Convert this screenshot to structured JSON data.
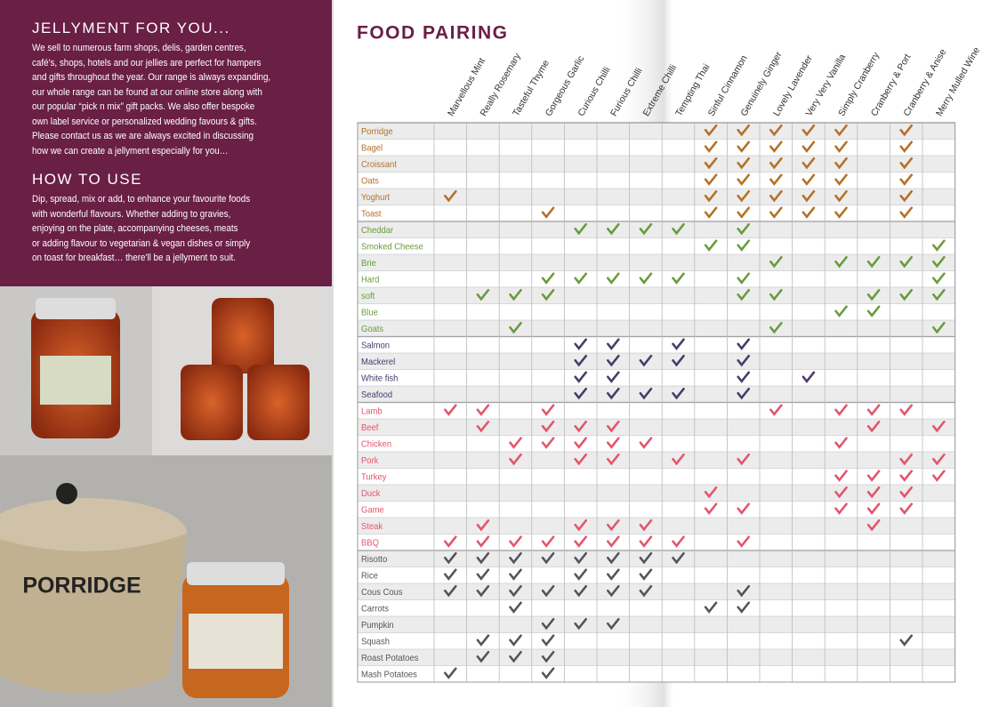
{
  "left": {
    "sections": [
      {
        "heading": "JELLYMENT FOR YOU...",
        "lines": [
          "We sell to numerous farm shops, delis, garden centres,",
          "café's, shops, hotels and our jellies are perfect for hampers",
          "and gifts throughout the year. Our range is always expanding,",
          "our whole range can be found at our online store along with",
          "our popular “pick n mix” gift packs. We also offer bespoke",
          "own label service or personalized wedding favours & gifts.",
          "Please contact us as we are always excited in discussing",
          "how we can create a jellyment especially for you…"
        ]
      },
      {
        "heading": "HOW TO USE",
        "lines": [
          "Dip, spread, mix or add, to enhance your favourite foods",
          "with wonderful flavours. Whether adding to gravies,",
          "enjoying on the plate, accompanying cheeses, meats",
          "or adding flavour to vegetarian & vegan dishes or simply",
          "on toast for breakfast… there'll be a jellyment to suit."
        ]
      }
    ],
    "bowl_text": "PORRIDGE"
  },
  "table": {
    "title": "FOOD PAIRING",
    "columns": [
      "Marvellous Mint",
      "Really Rosemary",
      "Tasteful Thyme",
      "Gorgeous Garlic",
      "Curious Chilli",
      "Furious Chilli",
      "Extreme Chilli",
      "Tempting Thai",
      "Sinful Cinnamon",
      "Genuinely Ginger",
      "Lovely Lavender",
      "Very Very Vanilla",
      "Simply Cranberry",
      "Cranberry & Port",
      "Cranberry & Anise",
      "Merry Mulled Wine"
    ],
    "groups": [
      {
        "color": "#b5702a",
        "rows": [
          {
            "label": "Porridge",
            "checks": [
              false,
              false,
              false,
              false,
              false,
              false,
              false,
              false,
              true,
              true,
              true,
              true,
              true,
              false,
              true,
              false
            ]
          },
          {
            "label": "Bagel",
            "checks": [
              false,
              false,
              false,
              false,
              false,
              false,
              false,
              false,
              true,
              true,
              true,
              true,
              true,
              false,
              true,
              false
            ]
          },
          {
            "label": "Croissant",
            "checks": [
              false,
              false,
              false,
              false,
              false,
              false,
              false,
              false,
              true,
              true,
              true,
              true,
              true,
              false,
              true,
              false
            ]
          },
          {
            "label": "Oats",
            "checks": [
              false,
              false,
              false,
              false,
              false,
              false,
              false,
              false,
              true,
              true,
              true,
              true,
              true,
              false,
              true,
              false
            ]
          },
          {
            "label": "Yoghurt",
            "checks": [
              true,
              false,
              false,
              false,
              false,
              false,
              false,
              false,
              true,
              true,
              true,
              true,
              true,
              false,
              true,
              false
            ]
          },
          {
            "label": "Toast",
            "checks": [
              false,
              false,
              false,
              true,
              false,
              false,
              false,
              false,
              true,
              true,
              true,
              true,
              true,
              false,
              true,
              false
            ]
          }
        ]
      },
      {
        "color": "#6b9a3c",
        "rows": [
          {
            "label": "Cheddar",
            "checks": [
              false,
              false,
              false,
              false,
              true,
              true,
              true,
              true,
              false,
              true,
              false,
              false,
              false,
              false,
              false,
              false
            ]
          },
          {
            "label": "Smoked Cheese",
            "checks": [
              false,
              false,
              false,
              false,
              false,
              false,
              false,
              false,
              true,
              true,
              false,
              false,
              false,
              false,
              false,
              true
            ]
          },
          {
            "label": "Brie",
            "checks": [
              false,
              false,
              false,
              false,
              false,
              false,
              false,
              false,
              false,
              false,
              true,
              false,
              true,
              true,
              true,
              true
            ]
          },
          {
            "label": "Hard",
            "checks": [
              false,
              false,
              false,
              true,
              true,
              true,
              true,
              true,
              false,
              true,
              false,
              false,
              false,
              false,
              false,
              true
            ]
          },
          {
            "label": "soft",
            "checks": [
              false,
              true,
              true,
              true,
              false,
              false,
              false,
              false,
              false,
              true,
              true,
              false,
              false,
              true,
              true,
              true
            ]
          },
          {
            "label": "Blue",
            "checks": [
              false,
              false,
              false,
              false,
              false,
              false,
              false,
              false,
              false,
              false,
              false,
              false,
              true,
              true,
              false,
              false
            ]
          },
          {
            "label": "Goats",
            "checks": [
              false,
              false,
              true,
              false,
              false,
              false,
              false,
              false,
              false,
              false,
              true,
              false,
              false,
              false,
              false,
              true
            ]
          }
        ]
      },
      {
        "color": "#4b3a6b",
        "rows": [
          {
            "label": "Salmon",
            "checks": [
              false,
              false,
              false,
              false,
              true,
              true,
              false,
              true,
              false,
              true,
              false,
              false,
              false,
              false,
              false,
              false
            ]
          },
          {
            "label": "Mackerel",
            "checks": [
              false,
              false,
              false,
              false,
              true,
              true,
              true,
              true,
              false,
              true,
              false,
              false,
              false,
              false,
              false,
              false
            ]
          },
          {
            "label": "White fish",
            "checks": [
              false,
              false,
              false,
              false,
              true,
              true,
              false,
              false,
              false,
              true,
              false,
              true,
              false,
              false,
              false,
              false
            ]
          },
          {
            "label": "Seafood",
            "checks": [
              false,
              false,
              false,
              false,
              true,
              true,
              true,
              true,
              false,
              true,
              false,
              false,
              false,
              false,
              false,
              false
            ]
          }
        ]
      },
      {
        "color": "#e2566a",
        "rows": [
          {
            "label": "Lamb",
            "checks": [
              true,
              true,
              false,
              true,
              false,
              false,
              false,
              false,
              false,
              false,
              true,
              false,
              true,
              true,
              true,
              false
            ]
          },
          {
            "label": "Beef",
            "checks": [
              false,
              true,
              false,
              true,
              true,
              true,
              false,
              false,
              false,
              false,
              false,
              false,
              false,
              true,
              false,
              true
            ]
          },
          {
            "label": "Chicken",
            "checks": [
              false,
              false,
              true,
              true,
              true,
              true,
              true,
              false,
              false,
              false,
              false,
              false,
              true,
              false,
              false,
              false
            ]
          },
          {
            "label": "Pork",
            "checks": [
              false,
              false,
              true,
              false,
              true,
              true,
              false,
              true,
              false,
              true,
              false,
              false,
              false,
              false,
              true,
              true
            ]
          },
          {
            "label": "Turkey",
            "checks": [
              false,
              false,
              false,
              false,
              false,
              false,
              false,
              false,
              false,
              false,
              false,
              false,
              true,
              true,
              true,
              true
            ]
          },
          {
            "label": "Duck",
            "checks": [
              false,
              false,
              false,
              false,
              false,
              false,
              false,
              false,
              true,
              false,
              false,
              false,
              true,
              true,
              true,
              false
            ]
          },
          {
            "label": "Game",
            "checks": [
              false,
              false,
              false,
              false,
              false,
              false,
              false,
              false,
              true,
              true,
              false,
              false,
              true,
              true,
              true,
              false
            ]
          },
          {
            "label": "Steak",
            "checks": [
              false,
              true,
              false,
              false,
              true,
              true,
              true,
              false,
              false,
              false,
              false,
              false,
              false,
              true,
              false,
              false
            ]
          },
          {
            "label": "BBQ",
            "checks": [
              true,
              true,
              true,
              true,
              true,
              true,
              true,
              true,
              false,
              true,
              false,
              false,
              false,
              false,
              false,
              false
            ]
          }
        ]
      },
      {
        "color": "#555555",
        "rows": [
          {
            "label": "Risotto",
            "checks": [
              true,
              true,
              true,
              true,
              true,
              true,
              true,
              true,
              false,
              false,
              false,
              false,
              false,
              false,
              false,
              false
            ]
          },
          {
            "label": "Rice",
            "checks": [
              true,
              true,
              true,
              false,
              true,
              true,
              true,
              false,
              false,
              false,
              false,
              false,
              false,
              false,
              false,
              false
            ]
          },
          {
            "label": "Cous Cous",
            "checks": [
              true,
              true,
              true,
              true,
              true,
              true,
              true,
              false,
              false,
              true,
              false,
              false,
              false,
              false,
              false,
              false
            ]
          },
          {
            "label": "Carrots",
            "checks": [
              false,
              false,
              true,
              false,
              false,
              false,
              false,
              false,
              true,
              true,
              false,
              false,
              false,
              false,
              false,
              false
            ]
          },
          {
            "label": "Pumpkin",
            "checks": [
              false,
              false,
              false,
              true,
              true,
              true,
              false,
              false,
              false,
              false,
              false,
              false,
              false,
              false,
              false,
              false
            ]
          },
          {
            "label": "Squash",
            "checks": [
              false,
              true,
              true,
              true,
              false,
              false,
              false,
              false,
              false,
              false,
              false,
              false,
              false,
              false,
              true,
              false
            ]
          },
          {
            "label": "Roast Potatoes",
            "checks": [
              false,
              true,
              true,
              true,
              false,
              false,
              false,
              false,
              false,
              false,
              false,
              false,
              false,
              false,
              false,
              false
            ]
          },
          {
            "label": "Mash Potatoes",
            "checks": [
              true,
              false,
              false,
              true,
              false,
              false,
              false,
              false,
              false,
              false,
              false,
              false,
              false,
              false,
              false,
              false
            ]
          }
        ]
      }
    ]
  }
}
